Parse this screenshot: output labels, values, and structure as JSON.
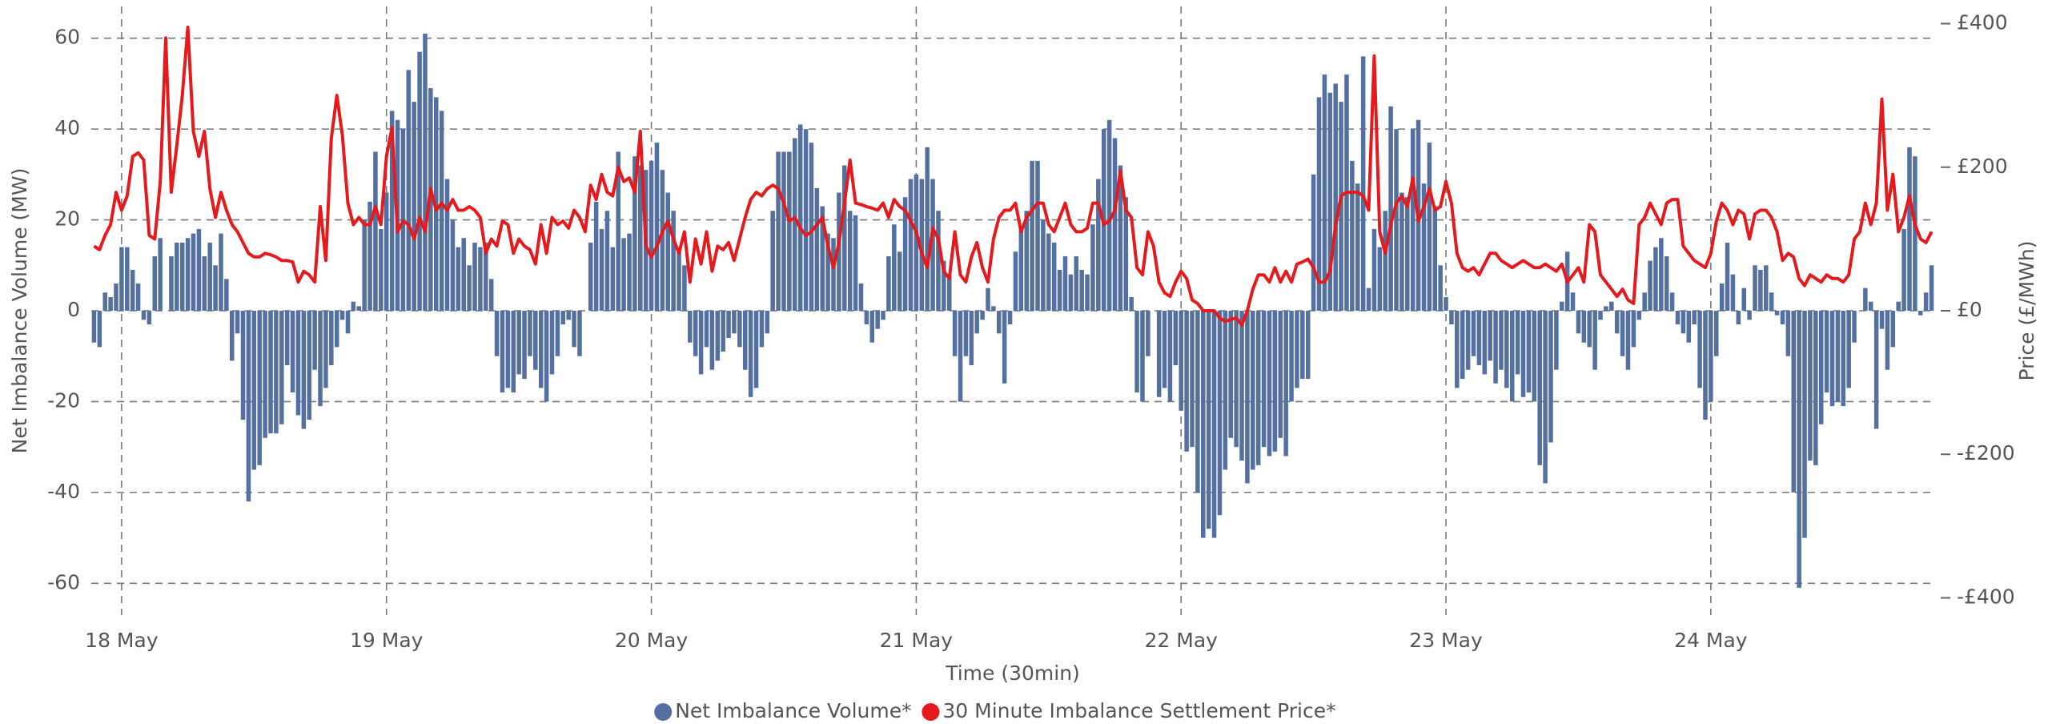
{
  "chart_data": {
    "type": "bar-line",
    "x_label": "Time (30min)",
    "y_label": "Net Imbalance Volume (MW)",
    "y2_label": "Price (£/MWh)",
    "xlim": [
      -0.5,
      333.5
    ],
    "xticks": [
      {
        "value": 5,
        "label": "18 May"
      },
      {
        "value": 53,
        "label": "19 May"
      },
      {
        "value": 101,
        "label": "20 May"
      },
      {
        "value": 149,
        "label": "21 May"
      },
      {
        "value": 197,
        "label": "22 May"
      },
      {
        "value": 245,
        "label": "23 May"
      },
      {
        "value": 293,
        "label": "24 May"
      }
    ],
    "ylim": [
      -67,
      67
    ],
    "yticks": [
      -60,
      -40,
      -20,
      0,
      20,
      40,
      60
    ],
    "y2lim": [
      -424,
      424
    ],
    "y2ticks": [
      {
        "value": -400,
        "label": "-£400"
      },
      {
        "value": -200,
        "label": "-£200"
      },
      {
        "value": 0,
        "label": "£0"
      },
      {
        "value": 200,
        "label": "£200"
      },
      {
        "value": 400,
        "label": "£400"
      }
    ],
    "grid": true,
    "legend": "bottom",
    "series": [
      {
        "name": "Net Imbalance Volume*",
        "type": "bar",
        "color": "#5470a0",
        "values": [
          -7,
          -8,
          4,
          3,
          6,
          14,
          14,
          9,
          6,
          -2,
          -3,
          12,
          16,
          0,
          12,
          15,
          15,
          16,
          17,
          18,
          12,
          15,
          10,
          17,
          7,
          -11,
          -5,
          -24,
          -42,
          -35,
          -34,
          -28,
          -27,
          -27,
          -25,
          -12,
          -18,
          -23,
          -26,
          -24,
          -13,
          -21,
          -17,
          -12,
          -8,
          -2,
          -5,
          2,
          1,
          20,
          24,
          35,
          18,
          26,
          44,
          42,
          40,
          53,
          46,
          57,
          61,
          49,
          47,
          44,
          29,
          20,
          14,
          16,
          10,
          15,
          14,
          15,
          7,
          -10,
          -18,
          -17,
          -18,
          -14,
          -15,
          -10,
          -13,
          -17,
          -20,
          -14,
          -10,
          -3,
          -2,
          -8,
          -10,
          0,
          15,
          24,
          18,
          22,
          14,
          35,
          16,
          17,
          34,
          32,
          31,
          33,
          37,
          31,
          26,
          22,
          13,
          10,
          -7,
          -10,
          -14,
          -8,
          -13,
          -11,
          -9,
          -6,
          -5,
          -8,
          -13,
          -19,
          -17,
          -8,
          -5,
          22,
          35,
          35,
          35,
          38,
          41,
          40,
          37,
          27,
          23,
          17,
          16,
          26,
          32,
          22,
          21,
          6,
          -3,
          -7,
          -4,
          -2,
          12,
          19,
          13,
          25,
          29,
          30,
          29,
          36,
          29,
          22,
          11,
          8,
          -10,
          -20,
          -10,
          -12,
          -5,
          -2,
          5,
          1,
          -5,
          -16,
          -3,
          13,
          18,
          22,
          33,
          33,
          20,
          17,
          15,
          9,
          12,
          8,
          12,
          9,
          8,
          19,
          29,
          40,
          42,
          38,
          32,
          25,
          3,
          -18,
          -20,
          -10,
          0,
          -19,
          -17,
          -20,
          -12,
          -22,
          -31,
          -30,
          -40,
          -50,
          -48,
          -50,
          -45,
          -35,
          -28,
          -30,
          -33,
          -38,
          -35,
          -34,
          -30,
          -32,
          -31,
          -28,
          -32,
          -20,
          -17,
          -15,
          -15,
          30,
          47,
          52,
          48,
          50,
          46,
          52,
          33,
          28,
          56,
          5,
          18,
          14,
          22,
          45,
          40,
          26,
          25,
          40,
          42,
          28,
          37,
          23,
          10,
          3,
          -3,
          -17,
          -15,
          -13,
          -10,
          -12,
          -14,
          -11,
          -16,
          -13,
          -17,
          -20,
          -14,
          -19,
          -18,
          -20,
          -34,
          -38,
          -29,
          -13,
          2,
          13,
          4,
          -5,
          -7,
          -8,
          -13,
          -2,
          1,
          2,
          -5,
          -10,
          -13,
          -8,
          -2,
          4,
          11,
          14,
          16,
          12,
          4,
          -3,
          -5,
          -7,
          -3,
          -17,
          -24,
          -20,
          -10,
          6,
          15,
          8,
          -3,
          5,
          -2,
          10,
          9,
          10,
          4,
          -1,
          -3,
          -10,
          -40,
          -61,
          -50,
          -33,
          -34,
          -25,
          -18,
          -21,
          -20,
          -21,
          -17,
          -7,
          0,
          5,
          2,
          -26,
          -4,
          -13,
          -8,
          2,
          18,
          36,
          34,
          -1,
          4,
          10
        ]
      },
      {
        "name": "30 Minute Imbalance Settlement Price*",
        "type": "line",
        "axis": "y2",
        "color": "#e41a1c",
        "values": [
          90,
          85,
          105,
          120,
          165,
          140,
          160,
          215,
          220,
          210,
          105,
          100,
          180,
          380,
          165,
          230,
          300,
          395,
          250,
          215,
          250,
          170,
          130,
          165,
          140,
          120,
          110,
          95,
          80,
          75,
          75,
          80,
          78,
          75,
          70,
          70,
          68,
          40,
          55,
          50,
          40,
          145,
          70,
          240,
          300,
          245,
          150,
          120,
          130,
          120,
          120,
          145,
          120,
          215,
          255,
          110,
          125,
          120,
          100,
          130,
          110,
          170,
          140,
          150,
          140,
          155,
          140,
          140,
          145,
          140,
          130,
          80,
          100,
          90,
          125,
          120,
          80,
          100,
          90,
          85,
          65,
          120,
          80,
          130,
          120,
          125,
          115,
          140,
          130,
          110,
          175,
          155,
          190,
          165,
          160,
          200,
          180,
          185,
          165,
          250,
          90,
          75,
          90,
          110,
          125,
          100,
          80,
          110,
          40,
          100,
          65,
          110,
          55,
          90,
          85,
          95,
          70,
          100,
          130,
          155,
          165,
          160,
          170,
          175,
          170,
          150,
          125,
          130,
          115,
          105,
          110,
          120,
          130,
          90,
          60,
          95,
          150,
          210,
          150,
          148,
          145,
          143,
          140,
          150,
          130,
          155,
          145,
          140,
          125,
          110,
          80,
          60,
          115,
          100,
          55,
          45,
          110,
          50,
          40,
          75,
          95,
          60,
          40,
          100,
          130,
          140,
          140,
          150,
          110,
          130,
          140,
          150,
          150,
          120,
          110,
          130,
          150,
          120,
          110,
          110,
          115,
          150,
          150,
          120,
          125,
          140,
          195,
          140,
          130,
          60,
          50,
          110,
          90,
          40,
          25,
          20,
          40,
          55,
          45,
          15,
          10,
          0,
          0,
          0,
          -10,
          -15,
          -12,
          -10,
          -20,
          0,
          30,
          50,
          50,
          40,
          60,
          40,
          55,
          40,
          65,
          68,
          72,
          60,
          40,
          40,
          55,
          120,
          160,
          165,
          165,
          165,
          160,
          140,
          355,
          110,
          80,
          120,
          150,
          160,
          145,
          185,
          125,
          145,
          170,
          140,
          145,
          180,
          150,
          80,
          60,
          55,
          60,
          50,
          65,
          80,
          80,
          70,
          65,
          60,
          65,
          70,
          65,
          60,
          60,
          65,
          60,
          55,
          65,
          40,
          50,
          60,
          40,
          120,
          110,
          50,
          40,
          30,
          20,
          30,
          15,
          10,
          120,
          130,
          150,
          135,
          120,
          150,
          155,
          155,
          90,
          80,
          70,
          65,
          60,
          80,
          125,
          150,
          140,
          120,
          140,
          135,
          100,
          135,
          140,
          140,
          130,
          110,
          70,
          80,
          75,
          45,
          35,
          50,
          45,
          40,
          50,
          45,
          45,
          40,
          50,
          100,
          110,
          150,
          120,
          150,
          295,
          140,
          190,
          110,
          130,
          160,
          120,
          100,
          95,
          110
        ]
      }
    ]
  }
}
